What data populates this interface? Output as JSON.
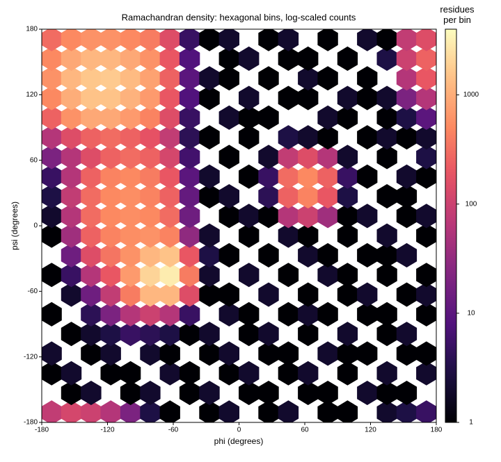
{
  "chart_data": {
    "type": "hexbin",
    "title": "Ramachandran density: hexagonal bins, log-scaled counts",
    "xlabel": "phi (degrees)",
    "ylabel": "psi (degrees)",
    "colorbar_label": "residues\nper bin",
    "x": [
      -171,
      -153,
      -135,
      -117,
      -99,
      -81,
      -63,
      -45,
      -27,
      -9,
      9,
      27,
      45,
      63,
      81,
      99,
      117,
      135,
      153,
      171
    ],
    "y": [
      -171,
      -153,
      -135,
      -117,
      -99,
      -81,
      -63,
      -45,
      -27,
      -9,
      9,
      27,
      45,
      63,
      81,
      99,
      117,
      135,
      153,
      171
    ],
    "counts": [
      [
        80,
        120,
        100,
        60,
        20,
        3,
        1,
        null,
        1,
        2,
        null,
        1,
        2,
        null,
        1,
        1,
        null,
        2,
        3,
        5
      ],
      [
        null,
        1,
        2,
        null,
        1,
        2,
        null,
        1,
        2,
        null,
        1,
        1,
        null,
        1,
        1,
        null,
        2,
        1,
        1,
        null
      ],
      [
        1,
        2,
        null,
        1,
        1,
        null,
        2,
        1,
        null,
        1,
        2,
        null,
        1,
        2,
        null,
        1,
        null,
        2,
        null,
        2
      ],
      [
        2,
        null,
        1,
        2,
        null,
        2,
        1,
        null,
        1,
        2,
        null,
        1,
        1,
        null,
        2,
        1,
        1,
        null,
        1,
        1
      ],
      [
        null,
        1,
        2,
        3,
        5,
        4,
        3,
        1,
        2,
        null,
        1,
        2,
        null,
        1,
        null,
        2,
        null,
        1,
        2,
        null
      ],
      [
        1,
        null,
        4,
        20,
        60,
        100,
        60,
        5,
        null,
        2,
        1,
        null,
        1,
        2,
        1,
        null,
        1,
        1,
        null,
        1
      ],
      [
        null,
        2,
        15,
        80,
        400,
        1200,
        1200,
        150,
        1,
        1,
        null,
        2,
        null,
        1,
        null,
        1,
        2,
        null,
        1,
        2
      ],
      [
        1,
        5,
        60,
        200,
        700,
        2000,
        3000,
        400,
        2,
        null,
        2,
        null,
        1,
        null,
        2,
        1,
        null,
        1,
        null,
        1
      ],
      [
        null,
        15,
        150,
        350,
        600,
        1200,
        1500,
        200,
        3,
        1,
        null,
        1,
        null,
        2,
        1,
        null,
        1,
        1,
        2,
        null
      ],
      [
        1,
        40,
        250,
        450,
        550,
        600,
        450,
        30,
        2,
        null,
        1,
        null,
        2,
        1,
        null,
        1,
        null,
        2,
        null,
        1
      ],
      [
        2,
        60,
        300,
        500,
        550,
        500,
        300,
        15,
        null,
        1,
        2,
        1,
        60,
        100,
        40,
        1,
        2,
        null,
        1,
        2
      ],
      [
        3,
        80,
        300,
        500,
        550,
        450,
        250,
        12,
        1,
        2,
        null,
        4,
        250,
        450,
        200,
        3,
        null,
        1,
        1,
        null
      ],
      [
        5,
        60,
        250,
        450,
        500,
        400,
        200,
        10,
        2,
        null,
        1,
        5,
        300,
        500,
        250,
        5,
        1,
        null,
        2,
        1
      ],
      [
        20,
        60,
        150,
        250,
        300,
        250,
        120,
        6,
        null,
        1,
        null,
        2,
        80,
        150,
        60,
        2,
        null,
        1,
        null,
        3
      ],
      [
        60,
        150,
        250,
        300,
        250,
        180,
        80,
        4,
        1,
        null,
        1,
        null,
        3,
        2,
        1,
        null,
        1,
        2,
        1,
        2
      ],
      [
        250,
        600,
        900,
        900,
        700,
        450,
        150,
        5,
        null,
        2,
        1,
        1,
        null,
        null,
        2,
        1,
        null,
        1,
        3,
        10
      ],
      [
        500,
        1000,
        1500,
        1500,
        1100,
        700,
        200,
        8,
        1,
        null,
        2,
        null,
        1,
        1,
        null,
        2,
        1,
        2,
        20,
        60
      ],
      [
        600,
        1200,
        1600,
        1700,
        1300,
        800,
        250,
        10,
        2,
        1,
        null,
        1,
        null,
        2,
        1,
        null,
        1,
        null,
        60,
        200
      ],
      [
        500,
        900,
        1200,
        1200,
        900,
        600,
        200,
        8,
        null,
        1,
        2,
        null,
        1,
        1,
        null,
        1,
        null,
        3,
        100,
        250
      ],
      [
        300,
        500,
        600,
        600,
        500,
        400,
        150,
        5,
        1,
        2,
        null,
        1,
        2,
        null,
        1,
        null,
        2,
        1,
        80,
        150
      ]
    ],
    "xlim": [
      -180,
      180
    ],
    "ylim": [
      -180,
      180
    ],
    "xticks": [
      -180,
      -120,
      -60,
      0,
      60,
      120,
      180
    ],
    "yticks": [
      -180,
      -120,
      -60,
      0,
      60,
      120,
      180
    ],
    "clim": [
      1,
      4000
    ],
    "cticks": [
      1,
      10,
      100,
      1000
    ],
    "log_color": true,
    "colormap": "magma"
  }
}
